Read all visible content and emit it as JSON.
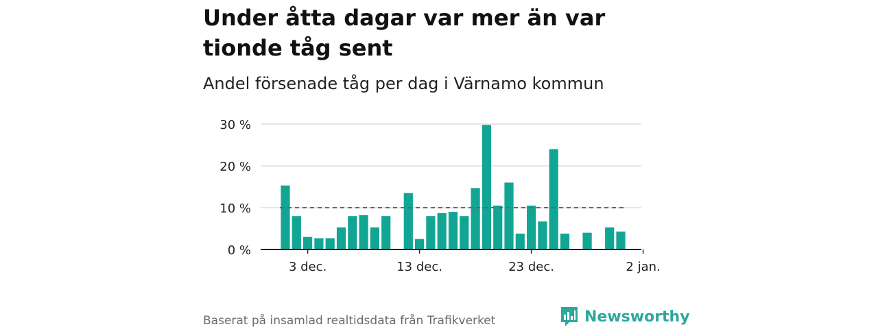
{
  "title": "Under åtta dagar var mer än var tionde tåg sent",
  "subtitle": "Andel försenade tåg per dag i Värnamo kommun",
  "source": "Baserat på insamlad realtidsdata från Trafikverket",
  "brand": {
    "name": "Newsworthy",
    "icon": "newsworthy-logo-icon",
    "color": "#2ea89d"
  },
  "colors": {
    "bar": "#12a594",
    "reference_line": "#666666",
    "grid": "#dddddd"
  },
  "chart_data": {
    "type": "bar",
    "x_tick_labels": [
      "3 dec.",
      "13 dec.",
      "23 dec.",
      "2 jan."
    ],
    "y_tick_labels": [
      "0 %",
      "10 %",
      "20 %",
      "30 %"
    ],
    "y_ticks": [
      0,
      10,
      20,
      30
    ],
    "ylim": [
      0,
      30
    ],
    "grid": true,
    "reference_line": {
      "value": 10,
      "style": "dashed"
    },
    "series": [
      {
        "dates": [
          "1 dec.",
          "2 dec.",
          "3 dec.",
          "4 dec.",
          "5 dec.",
          "6 dec.",
          "7 dec.",
          "8 dec.",
          "9 dec.",
          "10 dec.",
          "11 dec.",
          "12 dec.",
          "13 dec.",
          "14 dec.",
          "15 dec.",
          "16 dec.",
          "17 dec.",
          "18 dec.",
          "19 dec.",
          "20 dec.",
          "21 dec.",
          "22 dec.",
          "23 dec.",
          "24 dec.",
          "25 dec.",
          "26 dec.",
          "27 dec.",
          "28 dec.",
          "29 dec.",
          "30 dec.",
          "31 dec.",
          "1 jan."
        ],
        "values": [
          15.3,
          8.0,
          3.0,
          2.7,
          2.7,
          5.3,
          8.0,
          8.2,
          5.3,
          8.0,
          null,
          13.5,
          2.5,
          8.0,
          8.7,
          9.0,
          8.0,
          14.7,
          29.8,
          10.5,
          16.0,
          3.8,
          10.5,
          6.7,
          24.0,
          3.8,
          null,
          4.0,
          null,
          5.3,
          4.3,
          null
        ]
      }
    ]
  }
}
